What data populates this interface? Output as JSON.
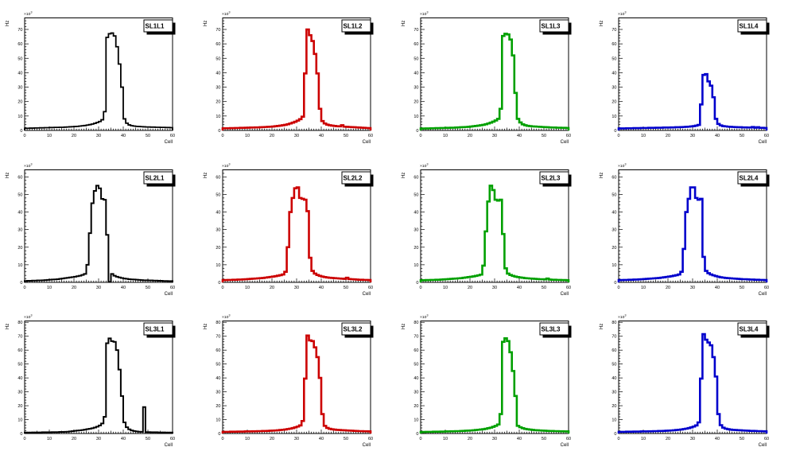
{
  "page": {
    "background": "#ffffff"
  },
  "axes_common": {
    "xlabel": "Cell",
    "ylabel": "Hz",
    "scale_label_base": "×10",
    "scale_label_exp": "3",
    "xlim": [
      0,
      60
    ],
    "xticks": [
      0,
      10,
      20,
      30,
      40,
      50,
      60
    ],
    "grid": false,
    "legend_position": "top-right"
  },
  "chart_data": [
    {
      "type": "bar",
      "label": "SL1L1",
      "color": "#000000",
      "line_width": 1.8,
      "ylim": [
        0,
        78
      ],
      "yticks": [
        0,
        10,
        20,
        30,
        40,
        50,
        60,
        70
      ],
      "x_start": 0,
      "bin_width": 1,
      "values": [
        1.5,
        1.5,
        1.6,
        1.6,
        1.7,
        1.7,
        1.8,
        1.8,
        1.9,
        1.9,
        2.0,
        2.0,
        2.1,
        2.1,
        2.2,
        2.2,
        2.3,
        2.4,
        2.5,
        2.6,
        2.7,
        2.8,
        3.0,
        3.2,
        3.4,
        3.7,
        4.0,
        4.4,
        4.9,
        5.5,
        6.2,
        7.4,
        13.0,
        64.5,
        67.0,
        67.5,
        65.5,
        58.0,
        46.0,
        30.0,
        8.0,
        5.0,
        3.8,
        3.3,
        3.0,
        2.8,
        2.7,
        2.6,
        2.5,
        2.4,
        2.4,
        2.3,
        2.3,
        2.2,
        2.2,
        2.1,
        2.1,
        2.0,
        2.0,
        1.9
      ]
    },
    {
      "type": "bar",
      "label": "SL1L2",
      "color": "#cc0000",
      "line_width": 2.6,
      "ylim": [
        0,
        78
      ],
      "yticks": [
        0,
        10,
        20,
        30,
        40,
        50,
        60,
        70
      ],
      "x_start": 0,
      "bin_width": 1,
      "values": [
        1.5,
        1.5,
        1.5,
        1.6,
        1.6,
        1.7,
        1.7,
        1.8,
        1.8,
        1.9,
        1.9,
        2.0,
        2.0,
        2.1,
        2.1,
        2.2,
        2.3,
        2.4,
        2.5,
        2.6,
        2.7,
        2.9,
        3.1,
        3.3,
        3.6,
        3.9,
        4.3,
        4.8,
        5.4,
        6.0,
        6.8,
        7.8,
        9.5,
        39.5,
        70.0,
        66.0,
        62.0,
        53.0,
        39.5,
        15.0,
        6.5,
        4.8,
        4.0,
        3.6,
        3.3,
        3.1,
        2.9,
        2.8,
        3.6,
        2.6,
        2.5,
        2.4,
        2.3,
        2.2,
        2.1,
        2.0,
        1.9,
        1.8,
        1.7,
        1.6
      ]
    },
    {
      "type": "bar",
      "label": "SL1L3",
      "color": "#00a000",
      "line_width": 2.6,
      "ylim": [
        0,
        78
      ],
      "yticks": [
        0,
        10,
        20,
        30,
        40,
        50,
        60,
        70
      ],
      "x_start": 0,
      "bin_width": 1,
      "values": [
        1.3,
        1.3,
        1.4,
        1.4,
        1.5,
        1.5,
        1.6,
        1.6,
        1.7,
        1.7,
        1.8,
        1.8,
        1.9,
        1.9,
        2.0,
        2.1,
        2.2,
        2.3,
        2.4,
        2.5,
        2.7,
        2.9,
        3.1,
        3.3,
        3.6,
        3.9,
        4.3,
        4.8,
        5.4,
        6.1,
        6.9,
        8.0,
        15.0,
        65.5,
        67.0,
        66.5,
        63.0,
        52.0,
        26.0,
        8.0,
        5.5,
        4.2,
        3.6,
        3.2,
        3.0,
        2.8,
        2.7,
        2.6,
        2.5,
        2.4,
        2.3,
        2.2,
        2.1,
        2.0,
        2.0,
        1.9,
        1.9,
        1.8,
        1.8,
        1.7
      ]
    },
    {
      "type": "bar",
      "label": "SL1L4",
      "color": "#0000cc",
      "line_width": 2.6,
      "ylim": [
        0,
        78
      ],
      "yticks": [
        0,
        10,
        20,
        30,
        40,
        50,
        60,
        70
      ],
      "x_start": 0,
      "bin_width": 1,
      "values": [
        1.4,
        1.4,
        1.4,
        1.5,
        1.5,
        1.5,
        1.6,
        1.6,
        1.6,
        1.7,
        1.7,
        1.7,
        1.8,
        1.8,
        1.8,
        1.9,
        1.9,
        1.9,
        2.0,
        2.0,
        2.0,
        2.1,
        2.1,
        2.2,
        2.2,
        2.3,
        2.4,
        2.5,
        2.6,
        2.8,
        3.0,
        3.3,
        3.8,
        18.0,
        38.5,
        39.0,
        34.0,
        31.0,
        23.0,
        8.0,
        4.5,
        3.5,
        3.0,
        2.8,
        2.6,
        2.5,
        2.4,
        2.3,
        2.2,
        2.2,
        2.1,
        2.1,
        2.0,
        2.0,
        2.4,
        1.9,
        2.2,
        1.8,
        1.8,
        1.7
      ]
    },
    {
      "type": "bar",
      "label": "SL2L1",
      "color": "#000000",
      "line_width": 2.0,
      "ylim": [
        0,
        64
      ],
      "yticks": [
        0,
        10,
        20,
        30,
        40,
        50,
        60
      ],
      "x_start": 0,
      "bin_width": 1,
      "values": [
        0.8,
        0.9,
        0.9,
        1.0,
        1.0,
        1.1,
        1.1,
        1.2,
        1.3,
        1.4,
        1.5,
        1.6,
        1.7,
        1.8,
        2.0,
        2.2,
        2.4,
        2.6,
        2.8,
        3.0,
        3.2,
        3.5,
        3.8,
        4.2,
        4.8,
        10.0,
        28.0,
        45.0,
        52.0,
        55.0,
        53.5,
        47.5,
        47.0,
        27.0,
        0.3,
        4.8,
        3.8,
        3.2,
        2.8,
        2.5,
        2.2,
        2.0,
        1.8,
        1.7,
        1.6,
        1.5,
        1.4,
        1.3,
        1.2,
        1.2,
        1.1,
        1.1,
        1.0,
        1.0,
        0.9,
        0.9,
        0.8,
        0.8,
        0.7,
        0.7
      ]
    },
    {
      "type": "bar",
      "label": "SL2L2",
      "color": "#cc0000",
      "line_width": 2.6,
      "ylim": [
        0,
        64
      ],
      "yticks": [
        0,
        10,
        20,
        30,
        40,
        50,
        60
      ],
      "x_start": 0,
      "bin_width": 1,
      "values": [
        1.3,
        1.3,
        1.4,
        1.4,
        1.5,
        1.5,
        1.6,
        1.6,
        1.7,
        1.8,
        1.9,
        2.0,
        2.1,
        2.2,
        2.3,
        2.4,
        2.5,
        2.7,
        2.9,
        3.1,
        3.3,
        3.5,
        3.8,
        4.1,
        4.5,
        6.0,
        20.0,
        40.0,
        48.0,
        53.5,
        54.0,
        48.0,
        47.5,
        47.0,
        40.5,
        14.0,
        6.5,
        5.0,
        4.2,
        3.7,
        3.3,
        3.0,
        2.8,
        2.6,
        2.5,
        2.4,
        2.3,
        2.2,
        2.1,
        2.0,
        2.6,
        1.9,
        1.8,
        1.7,
        1.6,
        1.5,
        1.5,
        1.4,
        1.4,
        1.3
      ]
    },
    {
      "type": "bar",
      "label": "SL2L3",
      "color": "#00a000",
      "line_width": 2.6,
      "ylim": [
        0,
        64
      ],
      "yticks": [
        0,
        10,
        20,
        30,
        40,
        50,
        60
      ],
      "x_start": 0,
      "bin_width": 1,
      "values": [
        1.2,
        1.2,
        1.3,
        1.3,
        1.4,
        1.4,
        1.5,
        1.5,
        1.6,
        1.7,
        1.8,
        1.9,
        2.0,
        2.1,
        2.2,
        2.3,
        2.4,
        2.6,
        2.8,
        3.0,
        3.2,
        3.4,
        3.7,
        4.0,
        4.4,
        9.5,
        29.0,
        46.0,
        55.0,
        52.5,
        47.0,
        46.5,
        47.0,
        27.5,
        8.0,
        5.0,
        4.2,
        3.7,
        3.3,
        3.0,
        2.8,
        2.6,
        2.4,
        2.3,
        2.2,
        2.1,
        2.0,
        1.9,
        1.8,
        1.8,
        1.7,
        2.2,
        1.6,
        1.5,
        1.5,
        1.4,
        1.4,
        1.3,
        1.3,
        1.2
      ]
    },
    {
      "type": "bar",
      "label": "SL2L4",
      "color": "#0000cc",
      "line_width": 2.6,
      "ylim": [
        0,
        64
      ],
      "yticks": [
        0,
        10,
        20,
        30,
        40,
        50,
        60
      ],
      "x_start": 0,
      "bin_width": 1,
      "values": [
        1.3,
        1.3,
        1.4,
        1.4,
        1.5,
        1.5,
        1.6,
        1.6,
        1.7,
        1.8,
        1.9,
        2.0,
        2.1,
        2.2,
        2.3,
        2.4,
        2.5,
        2.7,
        2.9,
        3.1,
        3.3,
        3.5,
        3.8,
        4.1,
        4.5,
        6.0,
        19.0,
        40.0,
        47.5,
        54.0,
        54.0,
        48.0,
        47.0,
        47.5,
        14.5,
        6.5,
        5.2,
        4.5,
        4.0,
        3.6,
        3.2,
        2.9,
        2.7,
        2.5,
        2.4,
        2.3,
        2.2,
        2.1,
        2.0,
        1.9,
        1.8,
        1.8,
        1.7,
        1.6,
        1.6,
        1.5,
        1.5,
        1.4,
        1.4,
        1.3
      ]
    },
    {
      "type": "bar",
      "label": "SL3L1",
      "color": "#000000",
      "line_width": 2.0,
      "ylim": [
        0,
        81
      ],
      "yticks": [
        0,
        10,
        20,
        30,
        40,
        50,
        60,
        70,
        80
      ],
      "x_start": 0,
      "bin_width": 1,
      "values": [
        0.7,
        0.7,
        0.7,
        0.8,
        0.8,
        0.8,
        0.8,
        0.9,
        0.9,
        0.9,
        0.9,
        1.0,
        1.0,
        1.0,
        1.1,
        1.1,
        1.2,
        1.3,
        1.5,
        1.7,
        1.9,
        2.1,
        2.3,
        2.5,
        2.8,
        3.1,
        3.4,
        3.8,
        4.3,
        4.9,
        5.8,
        7.2,
        12.0,
        65.0,
        68.5,
        66.5,
        66.0,
        60.0,
        46.0,
        27.0,
        8.0,
        4.5,
        3.0,
        2.2,
        1.8,
        1.5,
        1.3,
        1.2,
        19.0,
        1.0,
        1.0,
        0.9,
        0.9,
        0.9,
        0.8,
        0.8,
        0.8,
        0.7,
        0.7,
        0.7
      ]
    },
    {
      "type": "bar",
      "label": "SL3L2",
      "color": "#cc0000",
      "line_width": 2.6,
      "ylim": [
        0,
        81
      ],
      "yticks": [
        0,
        10,
        20,
        30,
        40,
        50,
        60,
        70,
        80
      ],
      "x_start": 0,
      "bin_width": 1,
      "values": [
        1.2,
        1.2,
        1.2,
        1.3,
        1.3,
        1.3,
        1.4,
        1.4,
        1.4,
        1.5,
        1.5,
        1.5,
        1.6,
        1.6,
        1.7,
        1.7,
        1.8,
        1.8,
        1.9,
        2.0,
        2.1,
        2.2,
        2.3,
        2.5,
        2.7,
        2.9,
        3.2,
        3.5,
        3.9,
        4.4,
        5.0,
        5.8,
        9.0,
        39.5,
        70.5,
        67.0,
        66.5,
        62.0,
        55.0,
        40.0,
        14.0,
        5.5,
        4.0,
        3.4,
        3.0,
        2.8,
        2.6,
        2.5,
        2.4,
        2.3,
        2.2,
        2.1,
        2.0,
        1.9,
        1.8,
        1.7,
        1.7,
        1.6,
        1.6,
        1.5
      ]
    },
    {
      "type": "bar",
      "label": "SL3L3",
      "color": "#00a000",
      "line_width": 2.6,
      "ylim": [
        0,
        81
      ],
      "yticks": [
        0,
        10,
        20,
        30,
        40,
        50,
        60,
        70,
        80
      ],
      "x_start": 0,
      "bin_width": 1,
      "values": [
        1.1,
        1.1,
        1.2,
        1.2,
        1.2,
        1.3,
        1.3,
        1.3,
        1.4,
        1.4,
        1.5,
        1.5,
        1.6,
        1.6,
        1.7,
        1.7,
        1.8,
        1.9,
        2.0,
        2.1,
        2.2,
        2.3,
        2.5,
        2.7,
        2.9,
        3.1,
        3.4,
        3.8,
        4.2,
        4.8,
        5.5,
        6.5,
        14.0,
        66.0,
        68.5,
        66.5,
        58.5,
        45.0,
        27.0,
        5.5,
        4.5,
        3.8,
        3.3,
        3.0,
        2.8,
        2.6,
        2.4,
        2.3,
        2.2,
        2.1,
        2.0,
        1.9,
        1.8,
        1.8,
        1.7,
        1.7,
        1.6,
        1.6,
        1.5,
        1.5
      ]
    },
    {
      "type": "bar",
      "label": "SL3L4",
      "color": "#0000cc",
      "line_width": 2.6,
      "ylim": [
        0,
        81
      ],
      "yticks": [
        0,
        10,
        20,
        30,
        40,
        50,
        60,
        70,
        80
      ],
      "x_start": 0,
      "bin_width": 1,
      "values": [
        1.2,
        1.2,
        1.2,
        1.3,
        1.3,
        1.3,
        1.4,
        1.4,
        1.4,
        1.5,
        1.5,
        1.5,
        1.6,
        1.6,
        1.7,
        1.7,
        1.8,
        1.8,
        1.9,
        2.0,
        2.1,
        2.2,
        2.3,
        2.5,
        2.7,
        2.9,
        3.2,
        3.5,
        3.9,
        4.4,
        5.0,
        5.8,
        8.0,
        39.5,
        71.5,
        67.5,
        65.5,
        63.5,
        55.0,
        41.0,
        14.0,
        6.0,
        4.2,
        3.5,
        3.1,
        2.8,
        2.6,
        2.5,
        2.4,
        2.3,
        2.2,
        2.1,
        2.0,
        1.9,
        1.9,
        1.8,
        1.7,
        1.7,
        1.6,
        1.6
      ]
    }
  ]
}
